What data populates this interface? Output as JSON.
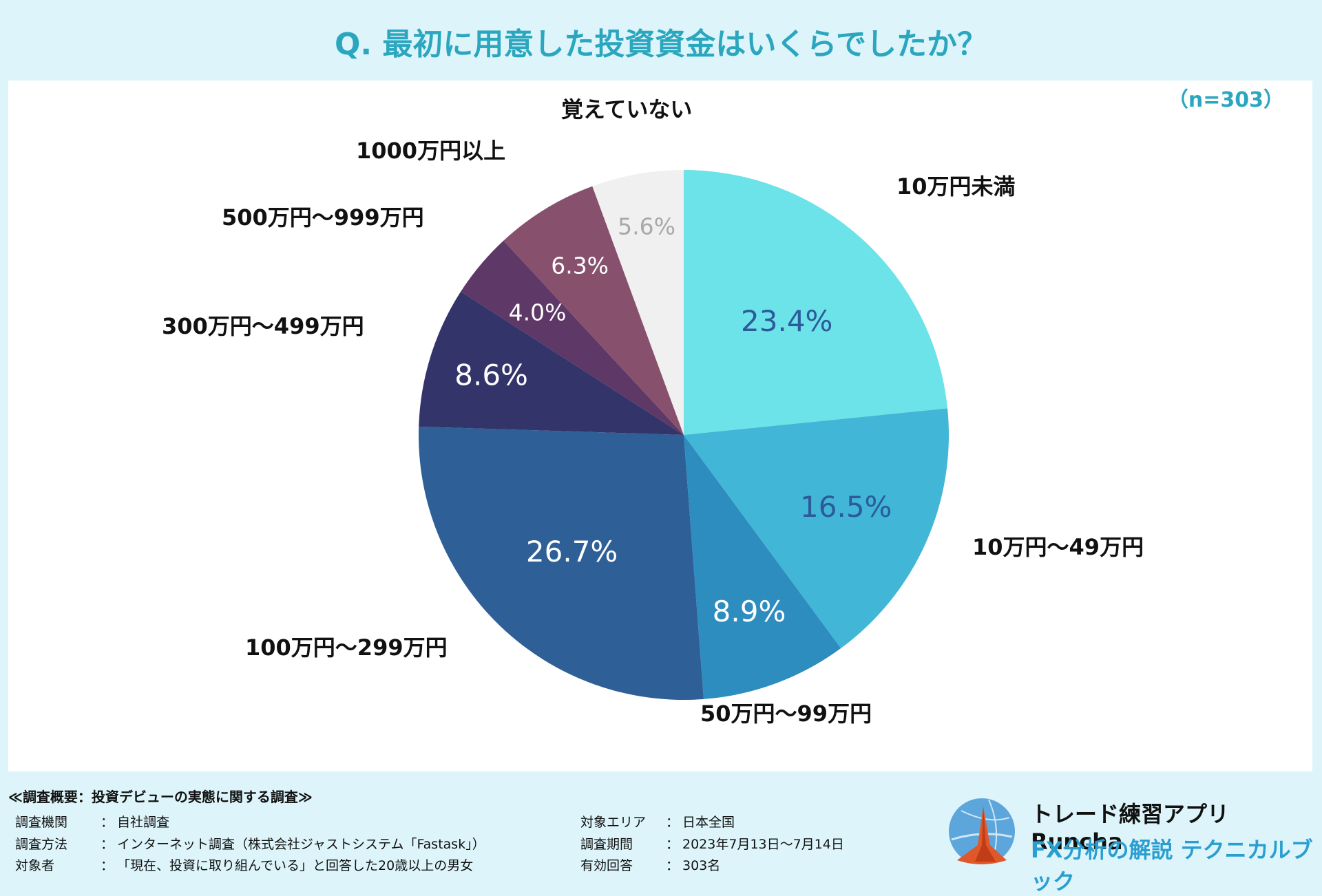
{
  "title": "Q. 最初に用意した投資資金はいくらでしたか？",
  "sample_size": "（n=303）",
  "chart_data": {
    "type": "pie",
    "title": "Q. 最初に用意した投資資金はいくらでしたか？",
    "start": "12 o'clock, clockwise",
    "slices": [
      {
        "label": "10万円未満",
        "value": 23.4,
        "display": "23.4%",
        "color": "#6be3e8",
        "text_color": "#2c5a9a"
      },
      {
        "label": "10万円～49万円",
        "value": 16.5,
        "display": "16.5%",
        "color": "#42b6d7",
        "text_color": "#2c5a9a"
      },
      {
        "label": "50万円～99万円",
        "value": 8.9,
        "display": "8.9%",
        "color": "#2d8dbf",
        "text_color": "#ffffff"
      },
      {
        "label": "100万円～299万円",
        "value": 26.7,
        "display": "26.7%",
        "color": "#2e5f97",
        "text_color": "#ffffff"
      },
      {
        "label": "300万円～499万円",
        "value": 8.6,
        "display": "8.6%",
        "color": "#33356a",
        "text_color": "#ffffff"
      },
      {
        "label": "500万円～999万円",
        "value": 4.0,
        "display": "4.0%",
        "color": "#5e3866",
        "text_color": "#ffffff"
      },
      {
        "label": "1000万円以上",
        "value": 6.3,
        "display": "6.3%",
        "color": "#87516e",
        "text_color": "#ffffff"
      },
      {
        "label": "覚えていない",
        "value": 5.6,
        "display": "5.6%",
        "color": "#f0f0f0",
        "text_color": "#a8a8a8"
      }
    ]
  },
  "survey": {
    "heading": "≪調査概要：投資デビューの実態に関する調査≫",
    "left": [
      {
        "key": "調査機関",
        "colon": "：",
        "value": "自社調査"
      },
      {
        "key": "調査方法",
        "colon": "：",
        "value": "インターネット調査（株式会社ジャストシステム「Fastask」）"
      },
      {
        "key": "対象者",
        "colon": "：",
        "value": "「現在、投資に取り組んでいる」と回答した20歳以上の男女"
      }
    ],
    "right": [
      {
        "key": "対象エリア",
        "colon": "：",
        "value": "日本全国"
      },
      {
        "key": "調査期間",
        "colon": "：",
        "value": "2023年7月13日～7月14日"
      },
      {
        "key": "有効回答",
        "colon": "：",
        "value": "303名"
      }
    ]
  },
  "brand": {
    "name": "トレード練習アプリ Runcha",
    "subtitle": "FX分析の解説 テクニカルブック",
    "logo_icon": "runcha-globe-logo-icon"
  }
}
